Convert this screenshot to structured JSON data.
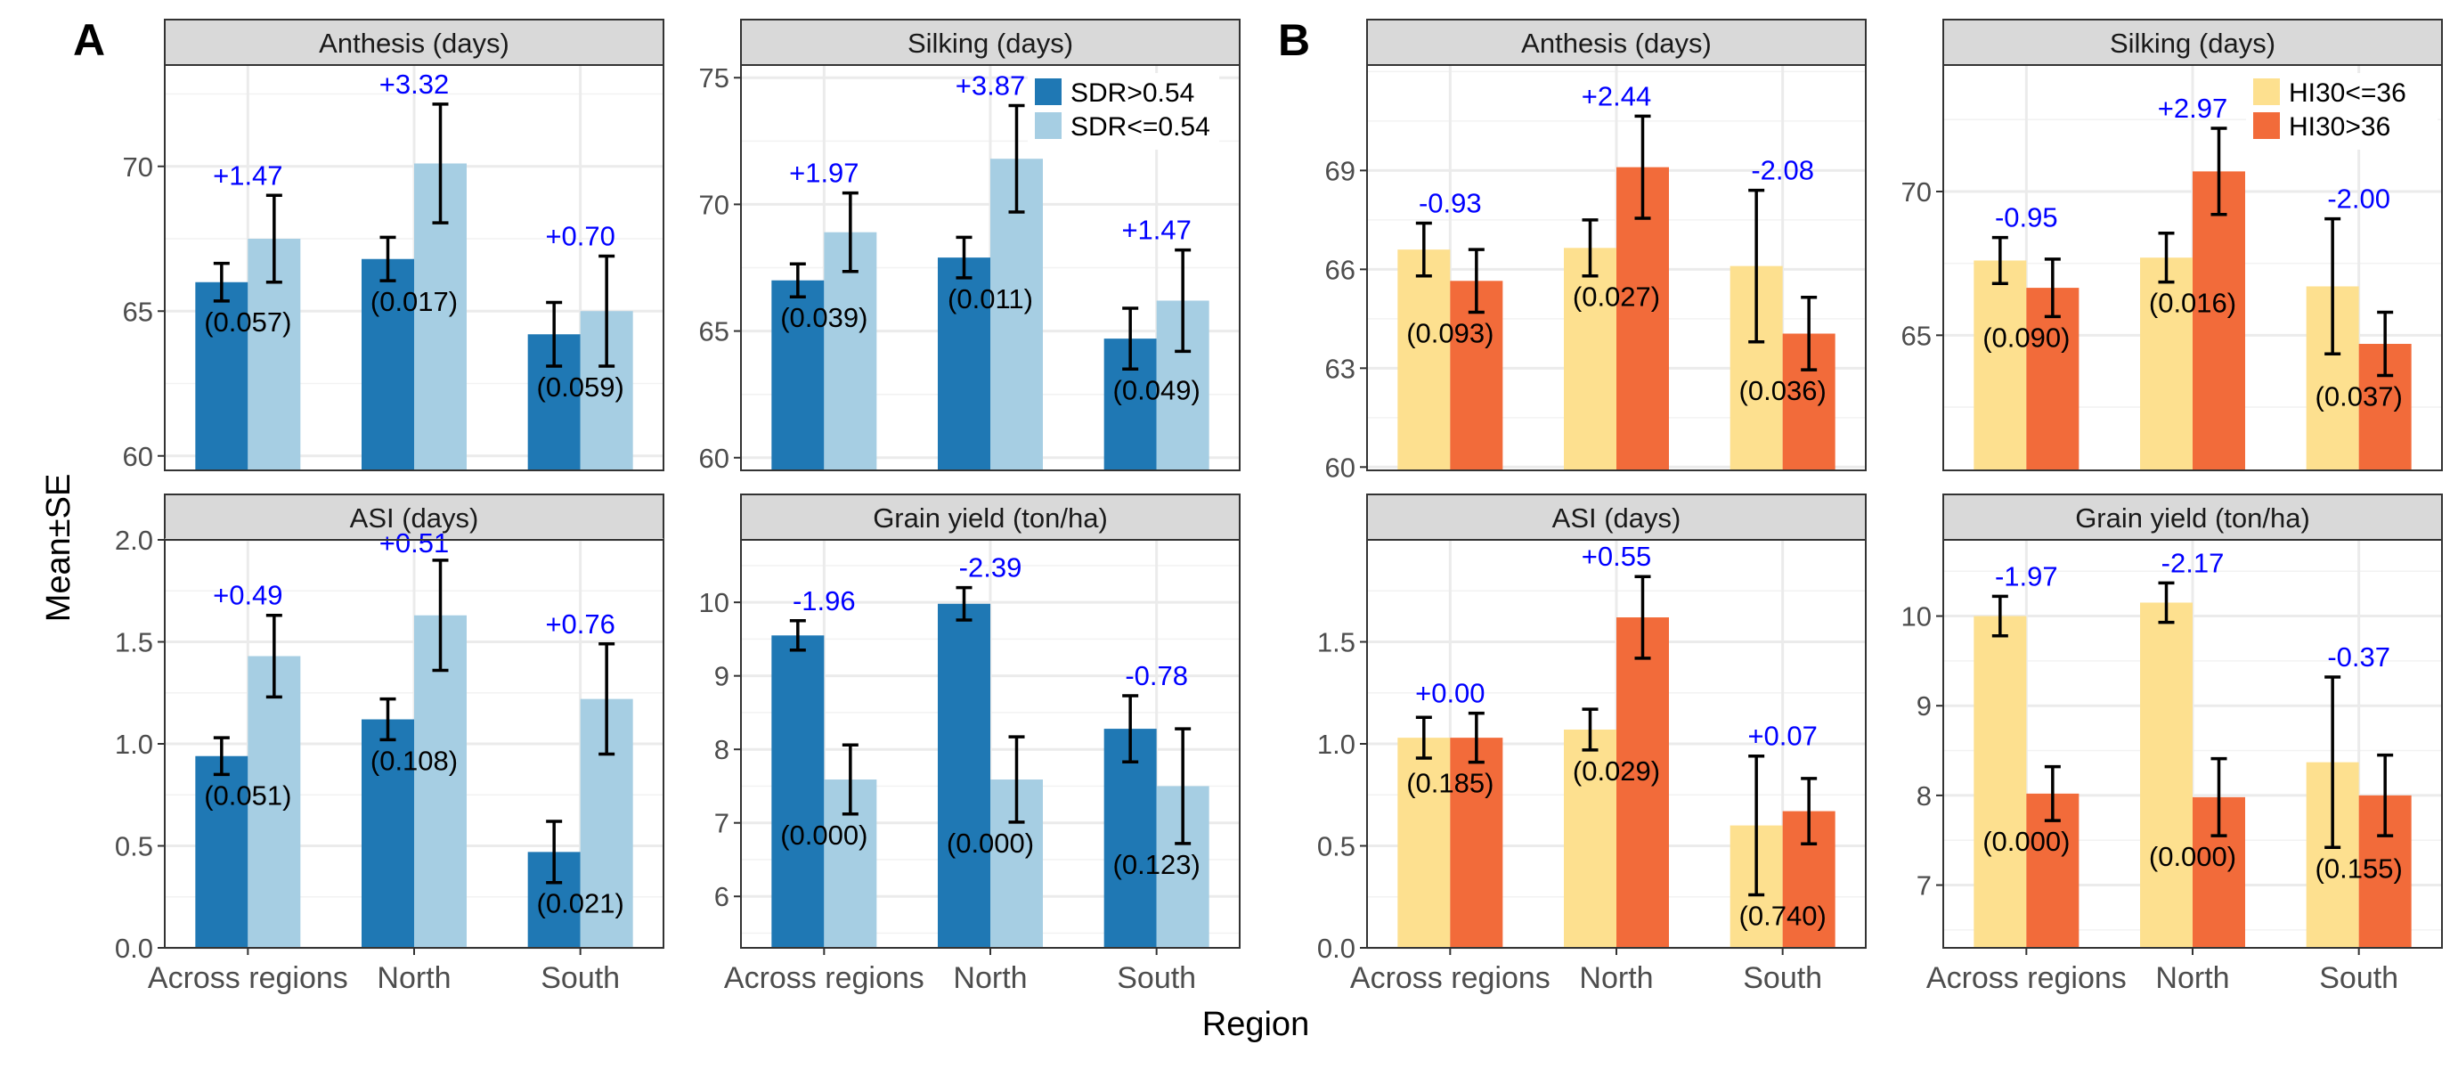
{
  "figure": {
    "panel_letters": [
      "A",
      "B"
    ],
    "ylabel": "Mean±SE",
    "xlabel": "Region",
    "categories": [
      "Across regions",
      "North",
      "South"
    ]
  },
  "colors": {
    "sdr_high": "#1f78b4",
    "sdr_low": "#a6cee3",
    "hi_low": "#fde08f",
    "hi_high": "#f26b3a",
    "diff_text": "#0000ff",
    "strip_fill": "#d9d9d9",
    "grid": "#ebebeb"
  },
  "legends": {
    "A": [
      {
        "label": "SDR>0.54",
        "color": "#1f78b4"
      },
      {
        "label": "SDR<=0.54",
        "color": "#a6cee3"
      }
    ],
    "B": [
      {
        "label": "HI30<=36",
        "color": "#fde08f"
      },
      {
        "label": "HI30>36",
        "color": "#f26b3a"
      }
    ]
  },
  "chart_data": [
    {
      "type": "bar",
      "group": "A",
      "title": "Anthesis (days)",
      "categories": [
        "Across regions",
        "North",
        "South"
      ],
      "series": [
        {
          "name": "SDR>0.54",
          "values": [
            66.0,
            66.8,
            64.2
          ],
          "se": [
            0.65,
            0.75,
            1.1
          ]
        },
        {
          "name": "SDR<=0.54",
          "values": [
            67.5,
            70.1,
            65.0
          ],
          "se": [
            1.5,
            2.05,
            1.9
          ]
        }
      ],
      "diff_labels": [
        "+1.47",
        "+3.32",
        "+0.70"
      ],
      "p_labels": [
        "(0.057)",
        "(0.017)",
        "(0.059)"
      ],
      "ylim": [
        59.5,
        73.5
      ],
      "yticks": [
        60,
        65,
        70
      ],
      "ytick_labels": [
        "60",
        "65",
        "70"
      ]
    },
    {
      "type": "bar",
      "group": "A",
      "title": "Silking (days)",
      "categories": [
        "Across regions",
        "North",
        "South"
      ],
      "series": [
        {
          "name": "SDR>0.54",
          "values": [
            67.0,
            67.9,
            64.7
          ],
          "se": [
            0.65,
            0.8,
            1.2
          ]
        },
        {
          "name": "SDR<=0.54",
          "values": [
            68.9,
            71.8,
            66.2
          ],
          "se": [
            1.55,
            2.1,
            2.0
          ]
        }
      ],
      "diff_labels": [
        "+1.97",
        "+3.87",
        "+1.47"
      ],
      "p_labels": [
        "(0.039)",
        "(0.011)",
        "(0.049)"
      ],
      "ylim": [
        59.5,
        75.5
      ],
      "yticks": [
        60,
        65,
        70,
        75
      ],
      "ytick_labels": [
        "60",
        "65",
        "70",
        "75"
      ]
    },
    {
      "type": "bar",
      "group": "A",
      "title": "ASI (days)",
      "categories": [
        "Across regions",
        "North",
        "South"
      ],
      "series": [
        {
          "name": "SDR>0.54",
          "values": [
            0.94,
            1.12,
            0.47
          ],
          "se": [
            0.09,
            0.1,
            0.15
          ]
        },
        {
          "name": "SDR<=0.54",
          "values": [
            1.43,
            1.63,
            1.22
          ],
          "se": [
            0.2,
            0.27,
            0.27
          ]
        }
      ],
      "diff_labels": [
        "+0.49",
        "+0.51",
        "+0.76"
      ],
      "p_labels": [
        "(0.051)",
        "(0.108)",
        "(0.021)"
      ],
      "ylim": [
        0,
        2.0
      ],
      "yticks": [
        0,
        0.5,
        1.0,
        1.5,
        2.0
      ],
      "ytick_labels": [
        "0.0",
        "0.5",
        "1.0",
        "1.5",
        "2.0"
      ]
    },
    {
      "type": "bar",
      "group": "A",
      "title": "Grain yield (ton/ha)",
      "categories": [
        "Across regions",
        "North",
        "South"
      ],
      "series": [
        {
          "name": "SDR>0.54",
          "values": [
            9.55,
            9.98,
            8.28
          ],
          "se": [
            0.2,
            0.22,
            0.45
          ]
        },
        {
          "name": "SDR<=0.54",
          "values": [
            7.59,
            7.59,
            7.5
          ],
          "se": [
            0.47,
            0.58,
            0.78
          ]
        }
      ],
      "diff_labels": [
        "-1.96",
        "-2.39",
        "-0.78"
      ],
      "p_labels": [
        "(0.000)",
        "(0.000)",
        "(0.123)"
      ],
      "ylim": [
        5.3,
        10.85
      ],
      "yticks": [
        6,
        7,
        8,
        9,
        10
      ],
      "ytick_labels": [
        "6",
        "7",
        "8",
        "9",
        "10"
      ]
    },
    {
      "type": "bar",
      "group": "B",
      "title": "Anthesis (days)",
      "categories": [
        "Across regions",
        "North",
        "South"
      ],
      "series": [
        {
          "name": "HI30<=36",
          "values": [
            66.6,
            66.65,
            66.1
          ],
          "se": [
            0.8,
            0.85,
            2.3
          ]
        },
        {
          "name": "HI30>36",
          "values": [
            65.65,
            69.1,
            64.05
          ],
          "se": [
            0.95,
            1.55,
            1.1
          ]
        }
      ],
      "diff_labels": [
        "-0.93",
        "+2.44",
        "-2.08"
      ],
      "p_labels": [
        "(0.093)",
        "(0.027)",
        "(0.036)"
      ],
      "ylim": [
        59.9,
        72.2
      ],
      "yticks": [
        60,
        63,
        66,
        69
      ],
      "ytick_labels": [
        "60",
        "63",
        "66",
        "69"
      ]
    },
    {
      "type": "bar",
      "group": "B",
      "title": "Silking (days)",
      "categories": [
        "Across regions",
        "North",
        "South"
      ],
      "series": [
        {
          "name": "HI30<=36",
          "values": [
            67.6,
            67.7,
            66.7
          ],
          "se": [
            0.8,
            0.85,
            2.35
          ]
        },
        {
          "name": "HI30>36",
          "values": [
            66.65,
            70.7,
            64.7
          ],
          "se": [
            1.0,
            1.5,
            1.1
          ]
        }
      ],
      "diff_labels": [
        "-0.95",
        "+2.97",
        "-2.00"
      ],
      "p_labels": [
        "(0.090)",
        "(0.016)",
        "(0.037)"
      ],
      "ylim": [
        60.3,
        74.4
      ],
      "yticks": [
        65,
        70
      ],
      "ytick_labels": [
        "65",
        "70"
      ]
    },
    {
      "type": "bar",
      "group": "B",
      "title": "ASI (days)",
      "categories": [
        "Across regions",
        "North",
        "South"
      ],
      "series": [
        {
          "name": "HI30<=36",
          "values": [
            1.03,
            1.07,
            0.6
          ],
          "se": [
            0.1,
            0.1,
            0.34
          ]
        },
        {
          "name": "HI30>36",
          "values": [
            1.03,
            1.62,
            0.67
          ],
          "se": [
            0.12,
            0.2,
            0.16
          ]
        }
      ],
      "diff_labels": [
        "+0.00",
        "+0.55",
        "+0.07"
      ],
      "p_labels": [
        "(0.185)",
        "(0.029)",
        "(0.740)"
      ],
      "ylim": [
        0,
        2.0
      ],
      "yticks": [
        0,
        0.5,
        1.0,
        1.5
      ],
      "ytick_labels": [
        "0.0",
        "0.5",
        "1.0",
        "1.5"
      ]
    },
    {
      "type": "bar",
      "group": "B",
      "title": "Grain yield (ton/ha)",
      "categories": [
        "Across regions",
        "North",
        "South"
      ],
      "series": [
        {
          "name": "HI30<=36",
          "values": [
            10.0,
            10.15,
            8.37
          ],
          "se": [
            0.22,
            0.22,
            0.95
          ]
        },
        {
          "name": "HI30>36",
          "values": [
            8.02,
            7.98,
            8.0
          ],
          "se": [
            0.3,
            0.43,
            0.45
          ]
        }
      ],
      "diff_labels": [
        "-1.97",
        "-2.17",
        "-0.37"
      ],
      "p_labels": [
        "(0.000)",
        "(0.000)",
        "(0.155)"
      ],
      "ylim": [
        6.3,
        10.85
      ],
      "yticks": [
        7,
        8,
        9,
        10
      ],
      "ytick_labels": [
        "7",
        "8",
        "9",
        "10"
      ]
    }
  ]
}
